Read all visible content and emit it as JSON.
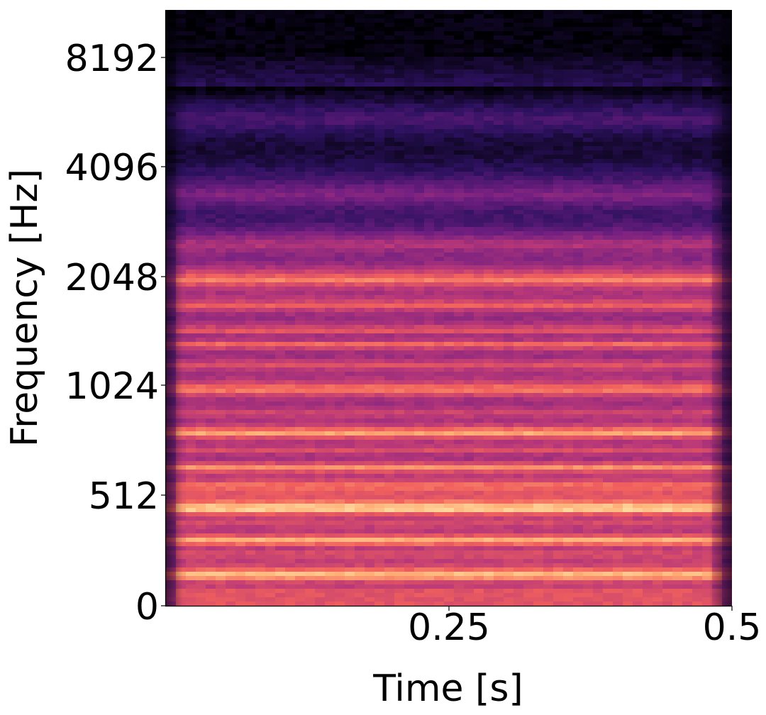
{
  "chart_data": {
    "type": "heatmap",
    "title": "",
    "xlabel": "Time [s]",
    "ylabel": "Frequency [Hz]",
    "x_ticks": [
      {
        "value": 0.25,
        "label": "0.25"
      },
      {
        "value": 0.5,
        "label": "0.5"
      }
    ],
    "y_ticks": [
      {
        "value": 0,
        "label": "0"
      },
      {
        "value": 512,
        "label": "512"
      },
      {
        "value": 1024,
        "label": "1024"
      },
      {
        "value": 2048,
        "label": "2048"
      },
      {
        "value": 4096,
        "label": "4096"
      },
      {
        "value": 8192,
        "label": "8192"
      }
    ],
    "xlim": [
      0,
      0.5
    ],
    "y_scale": "mel-like (log above 512 Hz)",
    "colormap": "magma",
    "colormap_stops": [
      "#000004",
      "#2c115f",
      "#721f81",
      "#b73779",
      "#f1605d",
      "#feb078",
      "#fcfdbf"
    ],
    "grid": false,
    "legend": "none",
    "description_bands": [
      {
        "freq_hz": 70,
        "level": 0.62
      },
      {
        "freq_hz": 140,
        "level": 0.93
      },
      {
        "freq_hz": 240,
        "level": 0.62
      },
      {
        "freq_hz": 300,
        "level": 0.9
      },
      {
        "freq_hz": 380,
        "level": 0.6
      },
      {
        "freq_hz": 450,
        "level": 0.99
      },
      {
        "freq_hz": 545,
        "level": 0.72
      },
      {
        "freq_hz": 610,
        "level": 0.77
      },
      {
        "freq_hz": 680,
        "level": 0.6
      },
      {
        "freq_hz": 760,
        "level": 0.85
      },
      {
        "freq_hz": 860,
        "level": 0.58
      },
      {
        "freq_hz": 1000,
        "level": 0.76
      },
      {
        "freq_hz": 1170,
        "level": 0.62
      },
      {
        "freq_hz": 1330,
        "level": 0.7
      },
      {
        "freq_hz": 1450,
        "level": 0.64
      },
      {
        "freq_hz": 1700,
        "level": 0.65
      },
      {
        "freq_hz": 2000,
        "level": 0.74
      },
      {
        "freq_hz": 2500,
        "level": 0.5
      },
      {
        "freq_hz": 3400,
        "level": 0.38
      },
      {
        "freq_hz": 5500,
        "level": 0.25
      }
    ]
  }
}
